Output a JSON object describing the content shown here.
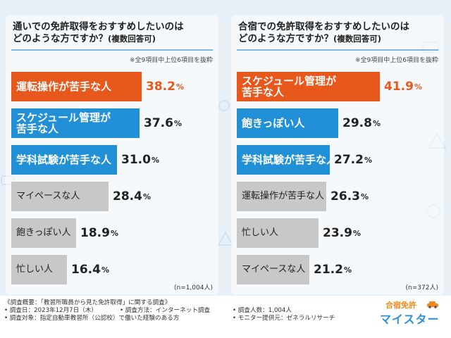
{
  "colors": {
    "orange": "#e8581c",
    "blue": "#2290d6",
    "gray": "#c8c8c8",
    "accent": "#e8581c"
  },
  "chart_data": [
    {
      "type": "bar",
      "title_line1": "通いでの免許取得をおすすめしたいのは",
      "title_line2": "どのような方ですか？",
      "title_suffix": "(複数回答可)",
      "note": "※全9項目中上位6項目を抜粋",
      "n_label": "(n=1,004人)",
      "categories_display": [
        "運転操作が苦手な人",
        "スケジュール管理が|苦手な人",
        "学科試験が苦手な人",
        "マイペースな人",
        "飽きっぽい人",
        "忙しい人"
      ],
      "categories": [
        "運転操作が苦手な人",
        "スケジュール管理が苦手な人",
        "学科試験が苦手な人",
        "マイペースな人",
        "飽きっぽい人",
        "忙しい人"
      ],
      "values": [
        38.2,
        37.6,
        31.0,
        28.4,
        18.9,
        16.4
      ],
      "value_labels": [
        "38.2",
        "37.6",
        "31.0",
        "28.4",
        "18.9",
        "16.4"
      ],
      "unit": "%",
      "bar_colors": [
        "orange",
        "blue",
        "blue",
        "gray",
        "gray",
        "gray"
      ],
      "xlim": [
        0,
        45
      ]
    },
    {
      "type": "bar",
      "title_line1": "合宿での免許取得をおすすめしたいのは",
      "title_line2": "どのような方ですか？",
      "title_suffix": "(複数回答可)",
      "note": "※全9項目中上位6項目を抜粋",
      "n_label": "(n=372人)",
      "categories_display": [
        "スケジュール管理が|苦手な人",
        "飽きっぽい人",
        "学科試験が苦手な人",
        "運転操作が苦手な人",
        "忙しい人",
        "マイペースな人"
      ],
      "categories": [
        "スケジュール管理が苦手な人",
        "飽きっぽい人",
        "学科試験が苦手な人",
        "運転操作が苦手な人",
        "忙しい人",
        "マイペースな人"
      ],
      "values": [
        41.9,
        29.8,
        27.2,
        26.3,
        23.9,
        21.2
      ],
      "value_labels": [
        "41.9",
        "29.8",
        "27.2",
        "26.3",
        "23.9",
        "21.2"
      ],
      "unit": "%",
      "bar_colors": [
        "orange",
        "blue",
        "blue",
        "gray",
        "gray",
        "gray"
      ],
      "xlim": [
        0,
        45
      ]
    }
  ],
  "footer": {
    "summary": "《調査概要：「教習所職員から見た免許取得」に関する調査》",
    "date": "• 調査日：2023年12月7日（木）",
    "method": "• 調査方法：インターネット調査",
    "count": "• 調査人数：1,004人",
    "target": "• 調査対象：指定自動車教習所（公認校）で働いた経験のある方",
    "provider": "• モニター提供元：ゼネラルリサーチ"
  },
  "logo": {
    "line1": "合宿免許",
    "line2": "マイスター"
  }
}
